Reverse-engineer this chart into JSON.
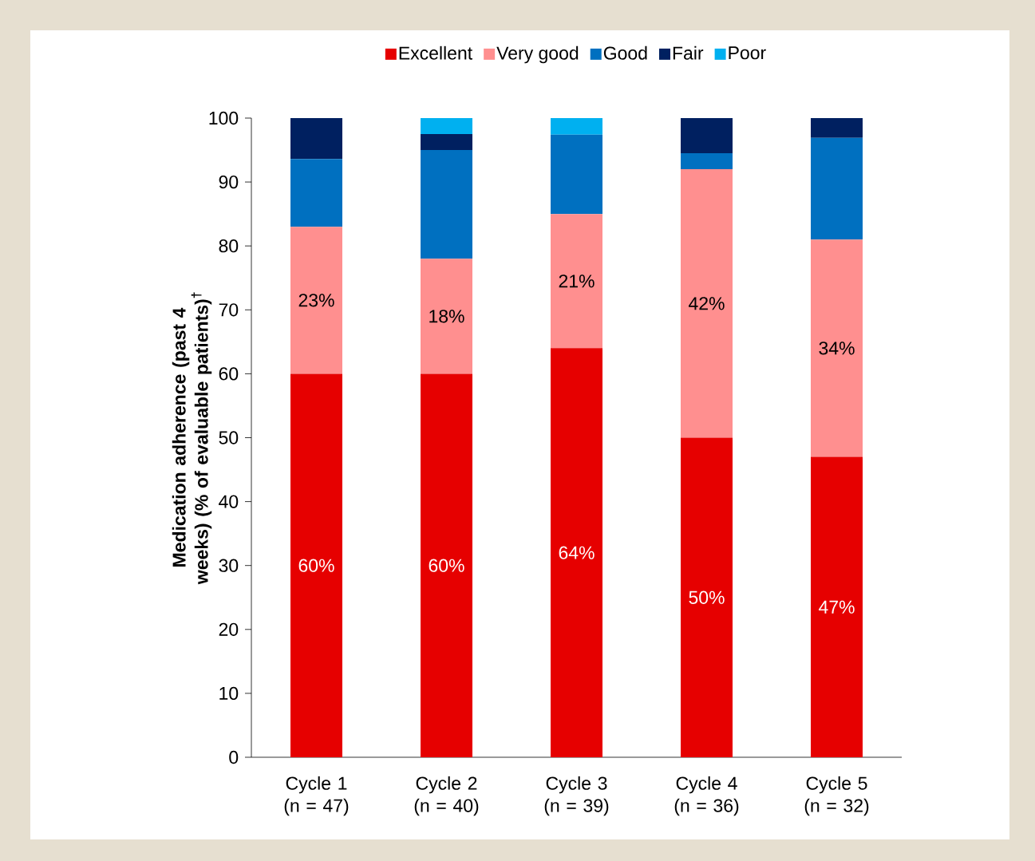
{
  "chart_data": {
    "type": "bar",
    "stacked": true,
    "ylabel": "Medication adherence (past 4 weeks) (% of evaluable patients)$^{†}$",
    "categories": [
      "Cycle 1 (n = 47)",
      "Cycle 2 (n = 40)",
      "Cycle 3 (n = 39)",
      "Cycle 4 (n = 36)",
      "Cycle 5 (n = 32)"
    ],
    "series": [
      {
        "name": "Excellent",
        "color": "#e60000",
        "values": [
          60,
          60,
          64,
          50,
          47
        ],
        "value_labels": [
          "60%",
          "60%",
          "64%",
          "50%",
          "47%"
        ]
      },
      {
        "name": "Very good",
        "color": "#ff8f8f",
        "values": [
          23,
          18,
          21,
          42,
          34
        ],
        "value_labels": [
          "23%",
          "18%",
          "21%",
          "42%",
          "34%"
        ]
      },
      {
        "name": "Good",
        "color": "#0070c0",
        "values": [
          10.6,
          17,
          12.4,
          2.5,
          15.9
        ]
      },
      {
        "name": "Fair",
        "color": "#002060",
        "values": [
          6.4,
          2.5,
          0,
          5.5,
          3.1
        ]
      },
      {
        "name": "Poor",
        "color": "#00b0f0",
        "values": [
          0,
          2.5,
          2.6,
          0,
          0
        ]
      }
    ],
    "ylim": [
      0,
      100
    ],
    "yticks": [
      0,
      10,
      20,
      30,
      40,
      50,
      60,
      70,
      80,
      90,
      100
    ],
    "legend": "top",
    "grid": false
  }
}
